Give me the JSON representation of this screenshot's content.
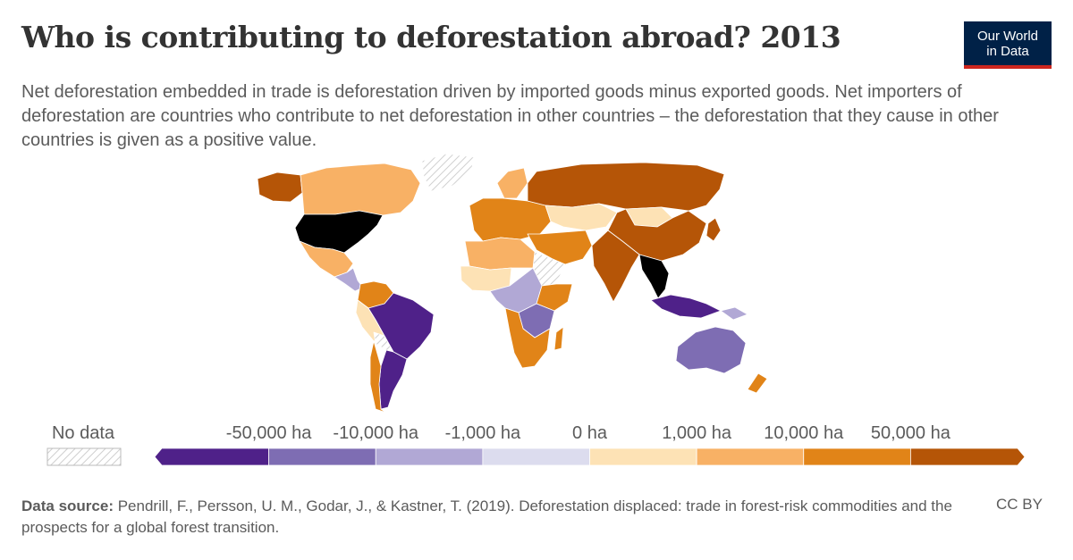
{
  "title": "Who is contributing to deforestation abroad? 2013",
  "subtitle": "Net deforestation embedded in trade is deforestation driven by imported goods minus exported goods. Net importers of deforestation are countries who contribute to net deforestation in other countries – the deforestation that they cause in other countries is given as a positive value.",
  "logo": {
    "line1": "Our World",
    "line2": "in Data"
  },
  "legend": {
    "no_data_label": "No data",
    "tick_labels": [
      "-50,000 ha",
      "-10,000 ha",
      "-1,000 ha",
      "0 ha",
      "1,000 ha",
      "10,000 ha",
      "50,000 ha"
    ],
    "bins": [
      {
        "color": "#4f2189",
        "range": "< -50,000 ha"
      },
      {
        "color": "#7e6db3",
        "range": "-50,000 to -10,000 ha"
      },
      {
        "color": "#b1a8d5",
        "range": "-10,000 to -1,000 ha"
      },
      {
        "color": "#dcdcee",
        "range": "-1,000 to 0 ha"
      },
      {
        "color": "#fde2b5",
        "range": "0 to 1,000 ha"
      },
      {
        "color": "#f8b165",
        "range": "1,000 to 10,000 ha"
      },
      {
        "color": "#e18418",
        "range": "10,000 to 50,000 ha"
      },
      {
        "color": "#b55507",
        "range": "> 50,000 ha"
      }
    ]
  },
  "map_regions": [
    {
      "region": "Canada",
      "color": "#f8b165"
    },
    {
      "region": "Alaska",
      "color": "#b55507"
    },
    {
      "region": "United States",
      "color": "#b55507"
    },
    {
      "region": "Greenland",
      "color": "no-data"
    },
    {
      "region": "Mexico",
      "color": "#f8b165"
    },
    {
      "region": "Central America",
      "color": "#b1a8d5"
    },
    {
      "region": "Colombia / Venezuela",
      "color": "#e18418"
    },
    {
      "region": "Peru",
      "color": "#fde2b5"
    },
    {
      "region": "Brazil",
      "color": "#4f2189"
    },
    {
      "region": "Bolivia",
      "color": "no-data"
    },
    {
      "region": "Paraguay",
      "color": "#4f2189"
    },
    {
      "region": "Argentina",
      "color": "#4f2189"
    },
    {
      "region": "Chile",
      "color": "#e18418"
    },
    {
      "region": "Europe",
      "color": "#e18418"
    },
    {
      "region": "Scandinavia",
      "color": "#f8b165"
    },
    {
      "region": "Russia",
      "color": "#b55507"
    },
    {
      "region": "Kazakhstan",
      "color": "#fde2b5"
    },
    {
      "region": "Mongolia",
      "color": "#fde2b5"
    },
    {
      "region": "China",
      "color": "#b55507"
    },
    {
      "region": "India",
      "color": "#b55507"
    },
    {
      "region": "Middle East",
      "color": "#e18418"
    },
    {
      "region": "Saudi Arabia",
      "color": "no-data"
    },
    {
      "region": "North Africa",
      "color": "#f8b165"
    },
    {
      "region": "West Africa",
      "color": "#fde2b5"
    },
    {
      "region": "Central Africa",
      "color": "#b1a8d5"
    },
    {
      "region": "East Africa",
      "color": "#e18418"
    },
    {
      "region": "Southern Africa",
      "color": "#e18418"
    },
    {
      "region": "Zambia / Mozambique",
      "color": "#7e6db3"
    },
    {
      "region": "Madagascar",
      "color": "#e18418"
    },
    {
      "region": "Southeast Asia mainland",
      "color": "#7e6db3"
    },
    {
      "region": "Indonesia",
      "color": "#4f2189"
    },
    {
      "region": "Papua New Guinea",
      "color": "#b1a8d5"
    },
    {
      "region": "Japan",
      "color": "#b55507"
    },
    {
      "region": "Australia",
      "color": "#7e6db3"
    },
    {
      "region": "New Zealand",
      "color": "#e18418"
    }
  ],
  "footer": {
    "source_label": "Data source:",
    "source_text": "Pendrill, F., Persson, U. M., Godar, J., & Kastner, T. (2019). Deforestation displaced: trade in forest-risk commodities and the prospects for a global forest transition.",
    "license": "CC BY"
  }
}
